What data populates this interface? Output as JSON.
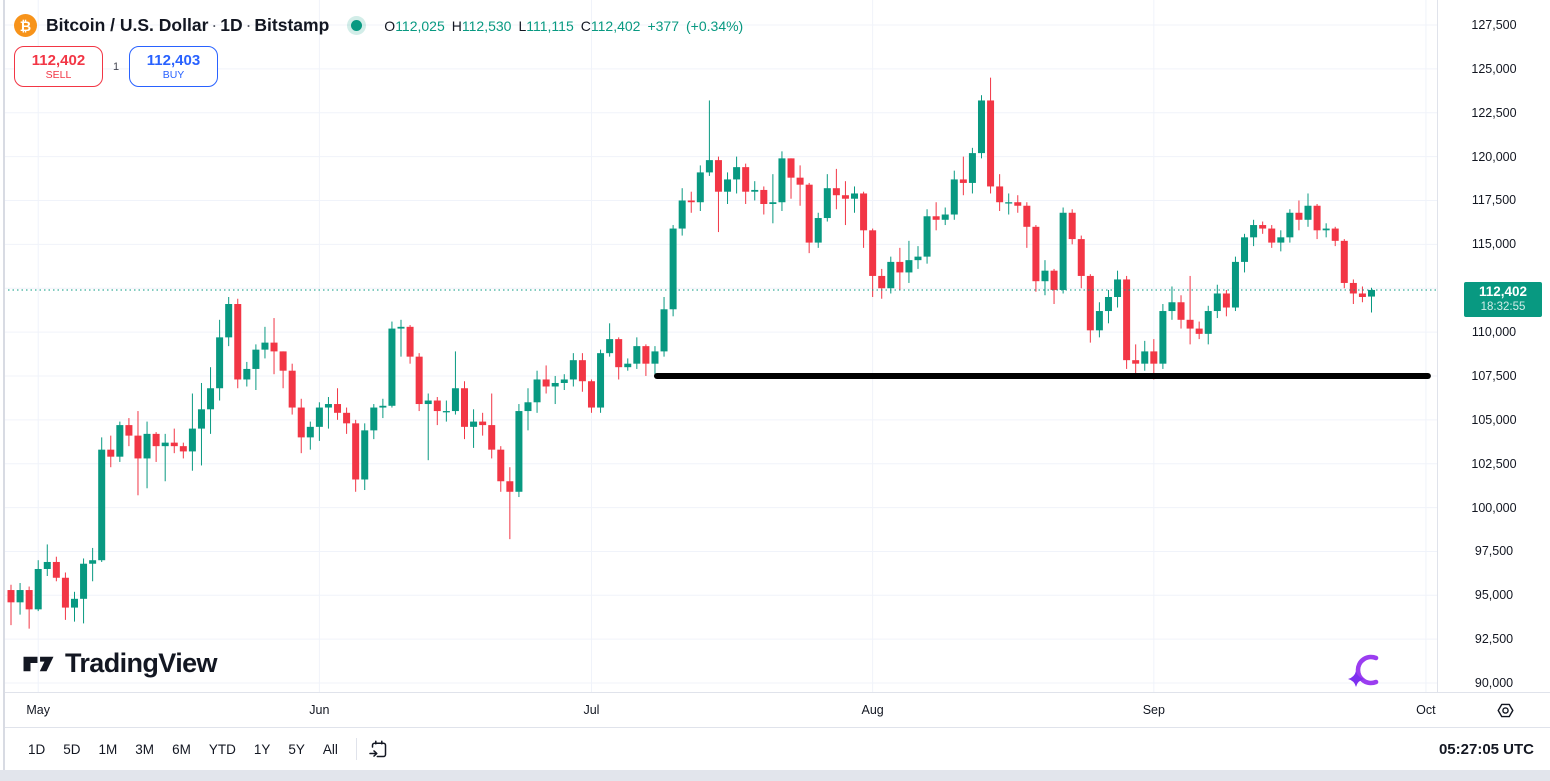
{
  "colors": {
    "up": "#089981",
    "down": "#f23645",
    "buy_blue": "#2962ff",
    "sell_red": "#f23645",
    "grid": "#f0f3fa",
    "text": "#131722",
    "border": "#e0e3eb",
    "btc_orange": "#f7931a",
    "trendline_black": "#000000",
    "last_price_bg": "#089981",
    "ai_purple": "#9b3df0"
  },
  "header": {
    "symbol": "Bitcoin / U.S. Dollar",
    "sep": "·",
    "interval": "1D",
    "exchange": "Bitstamp",
    "btc_glyph": "₿",
    "status": "market-open",
    "ohlc": {
      "o_label": "O",
      "o": "112,025",
      "h_label": "H",
      "h": "112,530",
      "l_label": "L",
      "l": "111,115",
      "c_label": "C",
      "c": "112,402",
      "change_abs": "+377",
      "change_pct": "(+0.34%)"
    },
    "sell_button": {
      "price": "112,402",
      "label": "SELL"
    },
    "buy_button": {
      "price": "112,403",
      "label": "BUY"
    },
    "spread": "1"
  },
  "watermark": {
    "text": "TradingView"
  },
  "toolbar": {
    "ranges": [
      "1D",
      "5D",
      "1M",
      "3M",
      "6M",
      "YTD",
      "1Y",
      "5Y",
      "All"
    ],
    "clock": "05:27:05 UTC"
  },
  "chart_data": {
    "type": "candlestick",
    "title": "Bitcoin / U.S. Dollar, 1D, Bitstamp",
    "ylim": [
      89500,
      128900
    ],
    "grid": true,
    "y_axis": {
      "ticks": [
        127500,
        125000,
        122500,
        120000,
        117500,
        115000,
        112500,
        110000,
        107500,
        105000,
        102500,
        100000,
        97500,
        95000,
        92500,
        90000
      ]
    },
    "x_axis": {
      "months": [
        {
          "label": "May",
          "day_index": 3
        },
        {
          "label": "Jun",
          "day_index": 34
        },
        {
          "label": "Jul",
          "day_index": 64
        },
        {
          "label": "Aug",
          "day_index": 95
        },
        {
          "label": "Sep",
          "day_index": 126
        },
        {
          "label": "Oct",
          "day_index": 156
        }
      ]
    },
    "overlays": {
      "support_line": {
        "shape": "horizontal-line",
        "price": 107500,
        "start_index": 71,
        "end_index": 156,
        "color": "#000000",
        "width": 6
      },
      "last_price_line": {
        "price": 112402,
        "style": "dotted",
        "color": "#089981"
      },
      "last_price_label": {
        "price": "112,402",
        "countdown": "18:32:55"
      }
    },
    "ohlc": [
      [
        95300,
        95600,
        93300,
        94600
      ],
      [
        94600,
        95700,
        93900,
        95300
      ],
      [
        95300,
        95500,
        93100,
        94200
      ],
      [
        94200,
        97000,
        94100,
        96500
      ],
      [
        96500,
        97900,
        96100,
        96900
      ],
      [
        96900,
        97200,
        95800,
        96000
      ],
      [
        96000,
        96300,
        93600,
        94300
      ],
      [
        94300,
        95200,
        93500,
        94800
      ],
      [
        94800,
        97100,
        93400,
        96800
      ],
      [
        96800,
        97700,
        95800,
        97000
      ],
      [
        97000,
        104000,
        96900,
        103300
      ],
      [
        103300,
        104100,
        102300,
        102900
      ],
      [
        102900,
        104900,
        102600,
        104700
      ],
      [
        104700,
        105100,
        103500,
        104100
      ],
      [
        104100,
        105500,
        100700,
        102800
      ],
      [
        102800,
        104900,
        101100,
        104200
      ],
      [
        104200,
        104300,
        102600,
        103500
      ],
      [
        103500,
        104200,
        101500,
        103700
      ],
      [
        103700,
        104500,
        103100,
        103500
      ],
      [
        103500,
        103700,
        102800,
        103200
      ],
      [
        103200,
        106500,
        102100,
        104500
      ],
      [
        104500,
        107100,
        102400,
        105600
      ],
      [
        105600,
        108000,
        104200,
        106800
      ],
      [
        106800,
        110700,
        106100,
        109700
      ],
      [
        109700,
        112000,
        109200,
        111600
      ],
      [
        111600,
        111900,
        106800,
        107300
      ],
      [
        107300,
        108300,
        106900,
        107900
      ],
      [
        107900,
        109300,
        106700,
        109000
      ],
      [
        109000,
        110300,
        108500,
        109400
      ],
      [
        109400,
        110800,
        107600,
        108900
      ],
      [
        108900,
        108900,
        106800,
        107800
      ],
      [
        107800,
        108200,
        105300,
        105700
      ],
      [
        105700,
        106200,
        103100,
        104000
      ],
      [
        104000,
        104900,
        103300,
        104600
      ],
      [
        104600,
        106000,
        103800,
        105700
      ],
      [
        105700,
        106300,
        104500,
        105900
      ],
      [
        105900,
        106800,
        105000,
        105400
      ],
      [
        105400,
        105700,
        104200,
        104800
      ],
      [
        104800,
        105000,
        100900,
        101600
      ],
      [
        101600,
        104800,
        101000,
        104400
      ],
      [
        104400,
        105900,
        103900,
        105700
      ],
      [
        105700,
        106200,
        105100,
        105800
      ],
      [
        105800,
        110600,
        105700,
        110200
      ],
      [
        110200,
        110700,
        108600,
        110300
      ],
      [
        110300,
        110400,
        108200,
        108600
      ],
      [
        108600,
        108800,
        105500,
        105900
      ],
      [
        105900,
        106500,
        102700,
        106100
      ],
      [
        106100,
        106300,
        104700,
        105500
      ],
      [
        105500,
        106100,
        104900,
        105500
      ],
      [
        105500,
        108900,
        105300,
        106800
      ],
      [
        106800,
        107200,
        103900,
        104600
      ],
      [
        104600,
        105600,
        103400,
        104900
      ],
      [
        104900,
        105400,
        104100,
        104700
      ],
      [
        104700,
        106500,
        102800,
        103300
      ],
      [
        103300,
        103500,
        100900,
        101500
      ],
      [
        101500,
        102300,
        98200,
        100900
      ],
      [
        100900,
        105900,
        100600,
        105500
      ],
      [
        105500,
        106800,
        104400,
        106000
      ],
      [
        106000,
        107800,
        105400,
        107300
      ],
      [
        107300,
        108100,
        106500,
        106900
      ],
      [
        106900,
        107500,
        105900,
        107100
      ],
      [
        107100,
        107600,
        106700,
        107300
      ],
      [
        107300,
        108800,
        106900,
        108400
      ],
      [
        108400,
        108800,
        106600,
        107200
      ],
      [
        107200,
        107300,
        105400,
        105700
      ],
      [
        105700,
        109000,
        105400,
        108800
      ],
      [
        108800,
        110500,
        108600,
        109600
      ],
      [
        109600,
        109700,
        107300,
        108000
      ],
      [
        108000,
        108500,
        107800,
        108200
      ],
      [
        108200,
        109700,
        107900,
        109200
      ],
      [
        109200,
        109300,
        107500,
        108200
      ],
      [
        108200,
        109200,
        107400,
        108900
      ],
      [
        108900,
        112000,
        108600,
        111300
      ],
      [
        111300,
        116100,
        110900,
        115900
      ],
      [
        115900,
        118200,
        115500,
        117500
      ],
      [
        117500,
        118000,
        116800,
        117400
      ],
      [
        117400,
        119500,
        116900,
        119100
      ],
      [
        119100,
        123200,
        118900,
        119800
      ],
      [
        119800,
        120000,
        115700,
        118000
      ],
      [
        118000,
        119100,
        117300,
        118700
      ],
      [
        118700,
        120000,
        117900,
        119400
      ],
      [
        119400,
        119600,
        117300,
        118000
      ],
      [
        118000,
        118600,
        117500,
        118100
      ],
      [
        118100,
        118300,
        116700,
        117300
      ],
      [
        117300,
        119000,
        116200,
        117400
      ],
      [
        117400,
        120300,
        116900,
        119900
      ],
      [
        119900,
        119900,
        117600,
        118800
      ],
      [
        118800,
        119500,
        117200,
        118400
      ],
      [
        118400,
        118500,
        114500,
        115100
      ],
      [
        115100,
        116800,
        114800,
        116500
      ],
      [
        116500,
        119000,
        116300,
        118200
      ],
      [
        118200,
        119300,
        117000,
        117800
      ],
      [
        117800,
        118600,
        116100,
        117600
      ],
      [
        117600,
        118300,
        116800,
        117900
      ],
      [
        117900,
        118000,
        114800,
        115800
      ],
      [
        115800,
        115900,
        112000,
        113200
      ],
      [
        113200,
        113600,
        111900,
        112500
      ],
      [
        112500,
        114300,
        112200,
        114000
      ],
      [
        114000,
        114800,
        112400,
        113400
      ],
      [
        113400,
        115200,
        112800,
        114100
      ],
      [
        114100,
        114900,
        113600,
        114300
      ],
      [
        114300,
        117000,
        113900,
        116600
      ],
      [
        116600,
        117400,
        115800,
        116400
      ],
      [
        116400,
        117100,
        116100,
        116700
      ],
      [
        116700,
        119200,
        116400,
        118700
      ],
      [
        118700,
        120000,
        117800,
        118500
      ],
      [
        118500,
        120500,
        117900,
        120200
      ],
      [
        120200,
        123500,
        119900,
        123200
      ],
      [
        123200,
        124500,
        117900,
        118300
      ],
      [
        118300,
        119000,
        116900,
        117400
      ],
      [
        117400,
        117900,
        116700,
        117400
      ],
      [
        117400,
        117800,
        116800,
        117200
      ],
      [
        117200,
        117400,
        114800,
        116000
      ],
      [
        116000,
        116100,
        112300,
        112900
      ],
      [
        112900,
        114100,
        112100,
        113500
      ],
      [
        113500,
        113600,
        111600,
        112400
      ],
      [
        112400,
        117100,
        112200,
        116800
      ],
      [
        116800,
        117000,
        115000,
        115300
      ],
      [
        115300,
        115500,
        112500,
        113200
      ],
      [
        113200,
        113300,
        109400,
        110100
      ],
      [
        110100,
        111700,
        109700,
        111200
      ],
      [
        111200,
        112400,
        110500,
        112000
      ],
      [
        112000,
        113500,
        111400,
        113000
      ],
      [
        113000,
        113200,
        107900,
        108400
      ],
      [
        108400,
        109300,
        107600,
        108200
      ],
      [
        108200,
        109500,
        107800,
        108900
      ],
      [
        108900,
        109600,
        107300,
        108200
      ],
      [
        108200,
        111600,
        107900,
        111200
      ],
      [
        111200,
        112600,
        110700,
        111700
      ],
      [
        111700,
        112100,
        110200,
        110700
      ],
      [
        110700,
        113200,
        109300,
        110200
      ],
      [
        110200,
        110600,
        109600,
        109900
      ],
      [
        109900,
        111500,
        109300,
        111200
      ],
      [
        111200,
        112700,
        110800,
        112200
      ],
      [
        112200,
        112400,
        110900,
        111400
      ],
      [
        111400,
        114300,
        111200,
        114000
      ],
      [
        114000,
        115600,
        113400,
        115400
      ],
      [
        115400,
        116400,
        114900,
        116100
      ],
      [
        116100,
        116300,
        115600,
        115900
      ],
      [
        115900,
        116100,
        114800,
        115100
      ],
      [
        115100,
        115800,
        114600,
        115400
      ],
      [
        115400,
        117000,
        115100,
        116800
      ],
      [
        116800,
        117500,
        115800,
        116400
      ],
      [
        116400,
        117900,
        116000,
        117200
      ],
      [
        117200,
        117300,
        115300,
        115800
      ],
      [
        115800,
        116200,
        115400,
        115900
      ],
      [
        115900,
        116000,
        114900,
        115200
      ],
      [
        115200,
        115300,
        112500,
        112800
      ],
      [
        112800,
        113000,
        111600,
        112200
      ],
      [
        112200,
        112600,
        111700,
        112000
      ],
      [
        112025,
        112530,
        111115,
        112402
      ]
    ]
  }
}
